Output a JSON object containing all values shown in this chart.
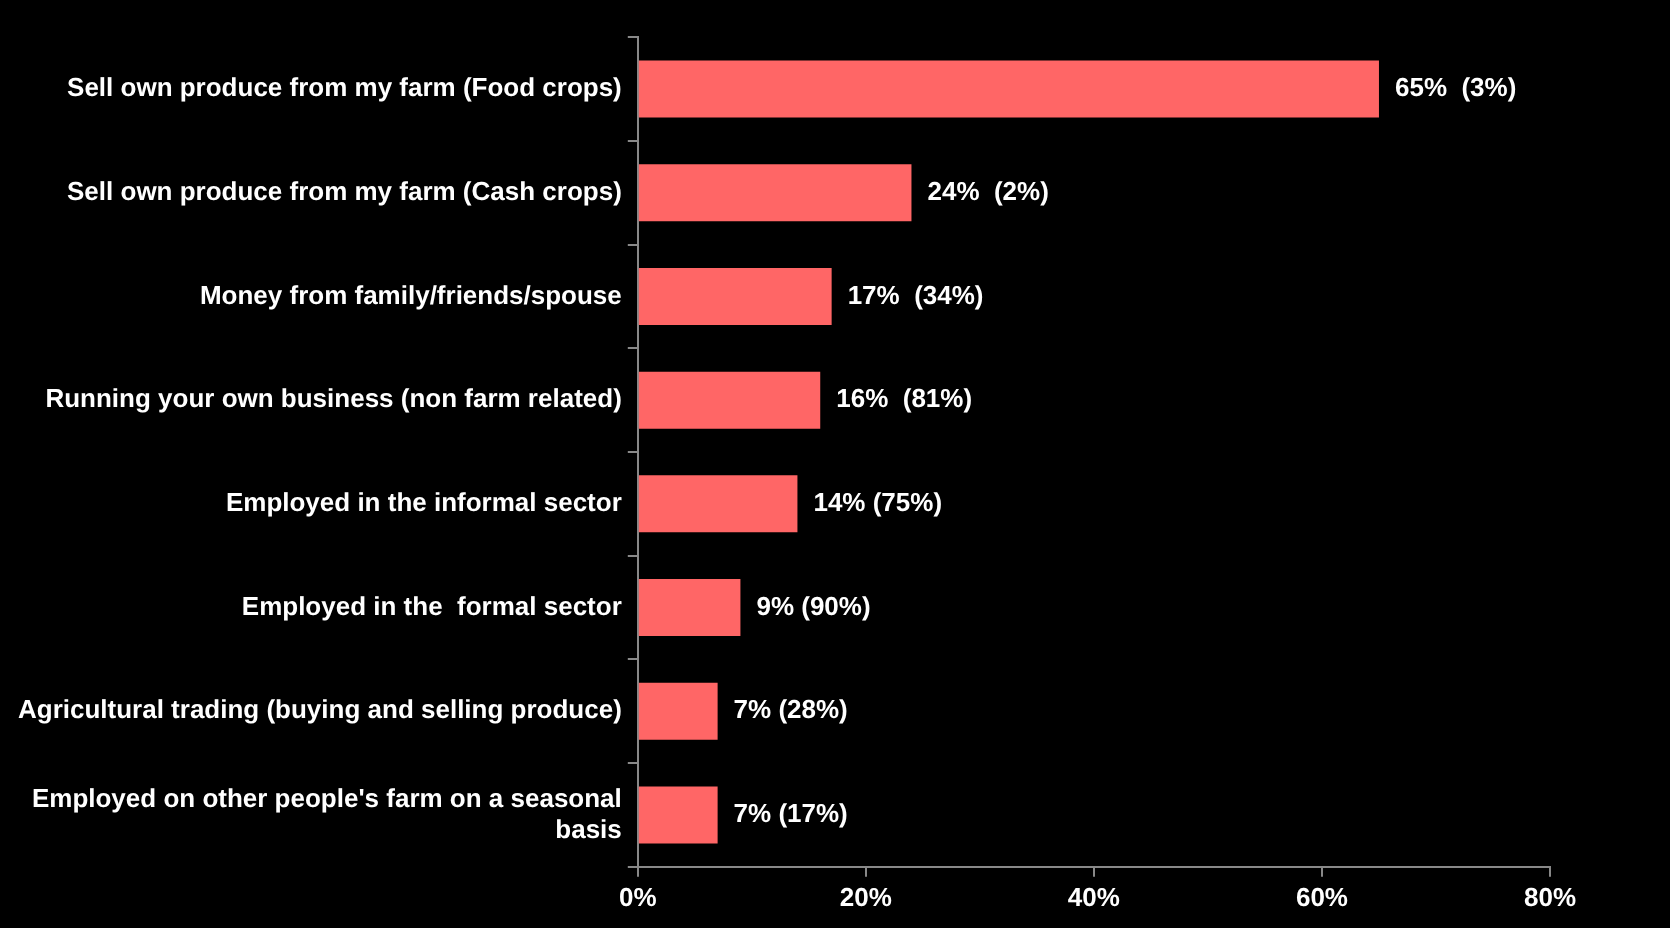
{
  "chart_data": {
    "type": "bar",
    "orientation": "horizontal",
    "categories": [
      "Sell own produce from my farm (Food crops)",
      "Sell own produce from my farm (Cash crops)",
      "Money from family/friends/spouse",
      "Running your own business (non farm related)",
      "Employed in the informal sector",
      "Employed in the  formal sector",
      "Agricultural trading (buying and selling produce)",
      "Employed on other people's farm on a seasonal basis"
    ],
    "values": [
      65,
      24,
      17,
      16,
      14,
      9,
      7,
      7
    ],
    "value_labels": [
      "65%  (3%)",
      "24%  (2%)",
      "17%  (34%)",
      "16%  (81%)",
      "14% (75%)",
      "9% (90%)",
      "7% (28%)",
      "7% (17%)"
    ],
    "color": "#ff6666",
    "xlim": [
      0,
      80
    ],
    "xticks": [
      {
        "value": 0,
        "label": "0%"
      },
      {
        "value": 20,
        "label": "20%"
      },
      {
        "value": 40,
        "label": "40%"
      },
      {
        "value": 60,
        "label": "60%"
      },
      {
        "value": 80,
        "label": "80%"
      }
    ],
    "grid": false,
    "legend": false
  }
}
